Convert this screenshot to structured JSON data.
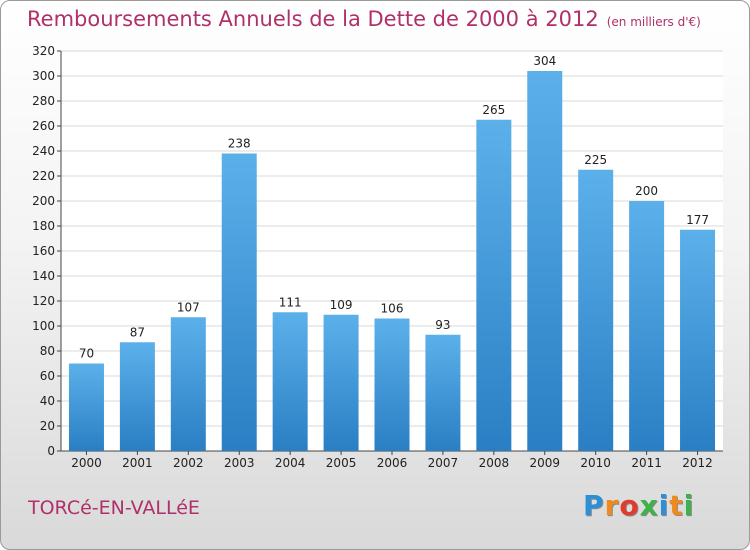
{
  "title": "Remboursements Annuels de la Dette de 2000 à 2012",
  "unit": "(en milliers d'€)",
  "commune": "TORCé-EN-VALLéE",
  "logo": {
    "letters": [
      "P",
      "r",
      "o",
      "x",
      "i",
      "t",
      "i"
    ],
    "colors": [
      "#2d8fd5",
      "#f08a1c",
      "#e03b2e",
      "#3bb24a",
      "#2d8fd5",
      "#f08a1c",
      "#3bb24a"
    ]
  },
  "colors": {
    "accent": "#b0306a",
    "bar_top": "#5cb0ea",
    "bar_bottom": "#2a7fc4"
  },
  "chart_data": {
    "type": "bar",
    "categories": [
      "2000",
      "2001",
      "2002",
      "2003",
      "2004",
      "2005",
      "2006",
      "2007",
      "2008",
      "2009",
      "2010",
      "2011",
      "2012"
    ],
    "values": [
      70,
      87,
      107,
      238,
      111,
      109,
      106,
      93,
      265,
      304,
      225,
      200,
      177
    ],
    "ylim": [
      0,
      320
    ],
    "yticks": [
      0,
      20,
      40,
      60,
      80,
      100,
      120,
      140,
      160,
      180,
      200,
      220,
      240,
      260,
      280,
      300,
      320
    ],
    "grid": true,
    "xlabel": "",
    "ylabel": ""
  }
}
